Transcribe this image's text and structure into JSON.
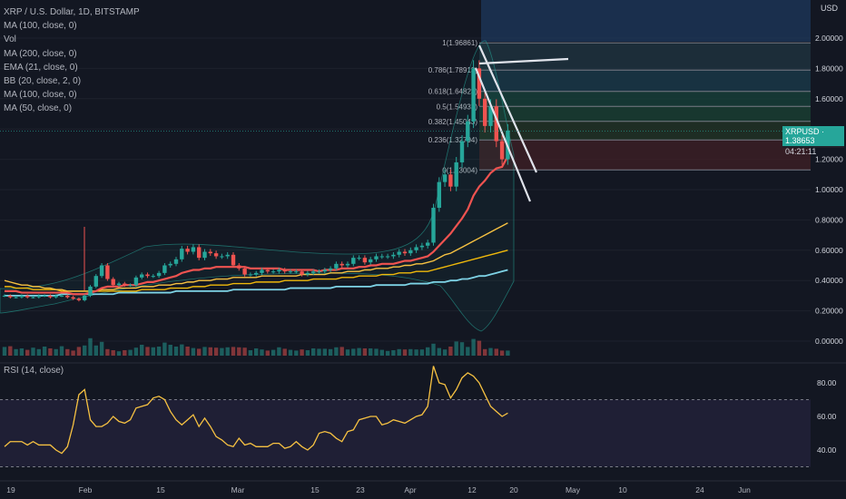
{
  "legend": {
    "symbol": "XRP / U.S. Dollar, 1D, BITSTAMP",
    "lines": [
      "MA (100, close, 0)",
      "Vol",
      "MA (200, close, 0)",
      "EMA (21, close, 0)",
      "BB (20, close, 2, 0)",
      "MA (100, close, 0)",
      "MA (50, close, 0)"
    ]
  },
  "rsi_label": "RSI (14, close)",
  "currency": "USD",
  "price_tag": {
    "symbol": "XRPUSD",
    "value": "1.38653",
    "countdown": "04:21:11"
  },
  "colors": {
    "background": "#131722",
    "up": "#26a69a",
    "down": "#ef5350",
    "ema": "#ef5350",
    "ma50": "#f7c242",
    "ma100": "#f0b90b",
    "ma200": "#7ed3e6",
    "rsi": "#f7c242",
    "rsi_band": "#7e57c2"
  },
  "chart_data": {
    "type": "candlestick",
    "price_axis": {
      "ticks": [
        "0.00000",
        "0.20000",
        "0.40000",
        "0.60000",
        "0.80000",
        "1.00000",
        "1.20000",
        "1.40000",
        "1.60000",
        "1.80000",
        "2.00000"
      ],
      "range": [
        -0.02,
        2.2
      ]
    },
    "rsi_axis": {
      "ticks": [
        "40.00",
        "60.00",
        "80.00"
      ],
      "overbought": 70,
      "oversold": 30
    },
    "x_ticks": [
      "19",
      "Feb",
      "15",
      "Mar",
      "15",
      "23",
      "Apr",
      "12",
      "20",
      "May",
      "10",
      "24",
      "Jun"
    ],
    "fib_levels": [
      {
        "label": "1(1.96861)",
        "value": 1.96861
      },
      {
        "label": "0.786(1.78913)",
        "value": 1.78913
      },
      {
        "label": "0.618(1.64823)",
        "value": 1.64823
      },
      {
        "label": "0.5(1.54933)",
        "value": 1.54933
      },
      {
        "label": "0.382(1.45043)",
        "value": 1.45043
      },
      {
        "label": "0.236(1.32794)",
        "value": 1.32794
      },
      {
        "label": "0(1.13004)",
        "value": 1.13004
      }
    ],
    "close": [
      0.3,
      0.29,
      0.29,
      0.3,
      0.29,
      0.29,
      0.3,
      0.3,
      0.29,
      0.3,
      0.3,
      0.29,
      0.28,
      0.27,
      0.3,
      0.36,
      0.43,
      0.5,
      0.41,
      0.37,
      0.38,
      0.37,
      0.37,
      0.42,
      0.44,
      0.43,
      0.43,
      0.45,
      0.5,
      0.51,
      0.54,
      0.61,
      0.59,
      0.62,
      0.55,
      0.59,
      0.58,
      0.56,
      0.56,
      0.57,
      0.5,
      0.48,
      0.44,
      0.44,
      0.45,
      0.47,
      0.46,
      0.46,
      0.47,
      0.46,
      0.46,
      0.46,
      0.44,
      0.45,
      0.46,
      0.46,
      0.47,
      0.48,
      0.51,
      0.5,
      0.51,
      0.55,
      0.55,
      0.52,
      0.54,
      0.56,
      0.56,
      0.56,
      0.57,
      0.59,
      0.58,
      0.6,
      0.62,
      0.63,
      0.65,
      0.88,
      1.05,
      1.1,
      1.02,
      1.18,
      1.32,
      1.45,
      1.8,
      1.6,
      1.42,
      1.55,
      1.32,
      1.2,
      1.39
    ],
    "volume": [
      24,
      26,
      18,
      20,
      16,
      22,
      18,
      25,
      20,
      18,
      26,
      18,
      14,
      24,
      28,
      48,
      28,
      38,
      18,
      15,
      12,
      15,
      16,
      22,
      30,
      24,
      23,
      25,
      36,
      30,
      25,
      31,
      25,
      21,
      19,
      24,
      23,
      22,
      21,
      23,
      24,
      23,
      22,
      15,
      20,
      17,
      14,
      16,
      23,
      19,
      16,
      14,
      17,
      15,
      20,
      19,
      19,
      18,
      23,
      24,
      17,
      19,
      21,
      20,
      20,
      19,
      16,
      13,
      15,
      18,
      17,
      18,
      17,
      17,
      23,
      33,
      21,
      17,
      25,
      39,
      37,
      24,
      46,
      41,
      18,
      21,
      19,
      14,
      14
    ],
    "rsi": [
      42,
      45,
      45,
      45,
      43,
      45,
      43,
      43,
      43,
      40,
      38,
      42,
      55,
      73,
      76,
      58,
      54,
      54,
      56,
      60,
      57,
      56,
      58,
      65,
      66,
      67,
      71,
      72,
      70,
      63,
      58,
      55,
      58,
      61,
      54,
      59,
      54,
      48,
      46,
      43,
      42,
      47,
      43,
      44,
      42,
      42,
      42,
      44,
      44,
      41,
      42,
      45,
      42,
      40,
      43,
      50,
      51,
      50,
      47,
      45,
      51,
      52,
      58,
      59,
      60,
      60,
      55,
      56,
      58,
      57,
      56,
      58,
      60,
      61,
      66,
      90,
      80,
      79,
      71,
      76,
      83,
      86,
      84,
      80,
      73,
      66,
      63,
      60,
      62
    ],
    "ema21": [
      0.33,
      0.33,
      0.33,
      0.32,
      0.32,
      0.32,
      0.32,
      0.32,
      0.32,
      0.32,
      0.32,
      0.32,
      0.31,
      0.31,
      0.31,
      0.32,
      0.33,
      0.35,
      0.36,
      0.36,
      0.36,
      0.37,
      0.37,
      0.37,
      0.38,
      0.39,
      0.39,
      0.4,
      0.41,
      0.42,
      0.43,
      0.45,
      0.46,
      0.47,
      0.47,
      0.48,
      0.48,
      0.49,
      0.49,
      0.49,
      0.49,
      0.49,
      0.49,
      0.48,
      0.48,
      0.48,
      0.48,
      0.48,
      0.48,
      0.47,
      0.47,
      0.47,
      0.47,
      0.47,
      0.47,
      0.46,
      0.47,
      0.47,
      0.47,
      0.48,
      0.48,
      0.48,
      0.49,
      0.49,
      0.5,
      0.5,
      0.51,
      0.51,
      0.51,
      0.52,
      0.53,
      0.53,
      0.54,
      0.55,
      0.56,
      0.59,
      0.63,
      0.67,
      0.71,
      0.76,
      0.81,
      0.87,
      0.96,
      1.02,
      1.06,
      1.11,
      1.14,
      1.15,
      1.22
    ],
    "ma50": [
      0.4,
      0.39,
      0.38,
      0.37,
      0.37,
      0.36,
      0.36,
      0.35,
      0.35,
      0.34,
      0.34,
      0.33,
      0.33,
      0.33,
      0.33,
      0.33,
      0.33,
      0.34,
      0.34,
      0.34,
      0.35,
      0.35,
      0.35,
      0.35,
      0.36,
      0.36,
      0.36,
      0.37,
      0.37,
      0.37,
      0.38,
      0.38,
      0.39,
      0.39,
      0.4,
      0.4,
      0.4,
      0.41,
      0.41,
      0.41,
      0.42,
      0.42,
      0.42,
      0.42,
      0.42,
      0.43,
      0.43,
      0.43,
      0.43,
      0.43,
      0.43,
      0.43,
      0.44,
      0.44,
      0.44,
      0.44,
      0.44,
      0.45,
      0.45,
      0.45,
      0.46,
      0.46,
      0.46,
      0.47,
      0.47,
      0.48,
      0.48,
      0.48,
      0.49,
      0.49,
      0.5,
      0.5,
      0.51,
      0.51,
      0.52,
      0.53,
      0.55,
      0.57,
      0.58,
      0.6,
      0.62,
      0.64,
      0.66,
      0.68,
      0.7,
      0.72,
      0.74,
      0.76,
      0.78
    ],
    "ma100": [
      0.36,
      0.36,
      0.35,
      0.35,
      0.35,
      0.34,
      0.34,
      0.34,
      0.34,
      0.34,
      0.33,
      0.33,
      0.33,
      0.33,
      0.33,
      0.33,
      0.33,
      0.33,
      0.33,
      0.33,
      0.33,
      0.33,
      0.33,
      0.33,
      0.34,
      0.34,
      0.34,
      0.34,
      0.34,
      0.35,
      0.35,
      0.35,
      0.35,
      0.36,
      0.36,
      0.36,
      0.37,
      0.37,
      0.37,
      0.37,
      0.38,
      0.38,
      0.38,
      0.38,
      0.39,
      0.39,
      0.39,
      0.39,
      0.39,
      0.4,
      0.4,
      0.4,
      0.4,
      0.4,
      0.41,
      0.41,
      0.41,
      0.41,
      0.41,
      0.42,
      0.42,
      0.42,
      0.43,
      0.43,
      0.43,
      0.43,
      0.44,
      0.44,
      0.44,
      0.45,
      0.45,
      0.45,
      0.46,
      0.46,
      0.46,
      0.47,
      0.48,
      0.49,
      0.5,
      0.51,
      0.52,
      0.53,
      0.54,
      0.55,
      0.56,
      0.57,
      0.58,
      0.59,
      0.6
    ],
    "ma200": [
      0.3,
      0.3,
      0.3,
      0.3,
      0.3,
      0.3,
      0.3,
      0.3,
      0.3,
      0.3,
      0.31,
      0.31,
      0.31,
      0.31,
      0.31,
      0.31,
      0.31,
      0.31,
      0.31,
      0.31,
      0.32,
      0.32,
      0.32,
      0.32,
      0.32,
      0.32,
      0.32,
      0.32,
      0.32,
      0.32,
      0.33,
      0.33,
      0.33,
      0.33,
      0.33,
      0.33,
      0.33,
      0.33,
      0.33,
      0.33,
      0.34,
      0.34,
      0.34,
      0.34,
      0.34,
      0.34,
      0.34,
      0.34,
      0.34,
      0.34,
      0.35,
      0.35,
      0.35,
      0.35,
      0.35,
      0.35,
      0.35,
      0.35,
      0.36,
      0.36,
      0.36,
      0.36,
      0.36,
      0.36,
      0.36,
      0.37,
      0.37,
      0.37,
      0.37,
      0.37,
      0.37,
      0.38,
      0.38,
      0.38,
      0.38,
      0.39,
      0.39,
      0.39,
      0.4,
      0.4,
      0.41,
      0.41,
      0.42,
      0.43,
      0.43,
      0.44,
      0.45,
      0.46,
      0.47
    ]
  }
}
